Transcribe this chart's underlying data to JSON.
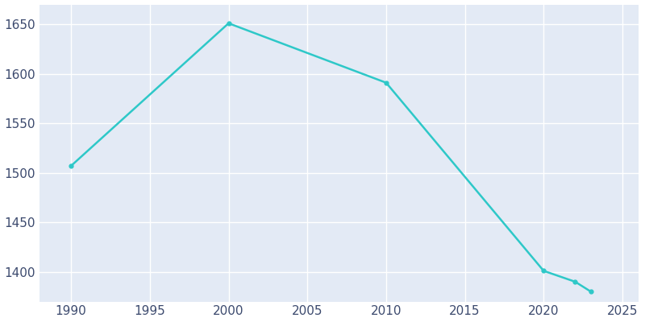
{
  "years": [
    1990,
    2000,
    2010,
    2020,
    2022,
    2023
  ],
  "population": [
    1507,
    1651,
    1591,
    1401,
    1390,
    1380
  ],
  "line_color": "#2ec8c8",
  "plot_bg_color": "#e3eaf5",
  "fig_bg_color": "#ffffff",
  "grid_color": "#ffffff",
  "tick_color": "#3c4a6e",
  "xlim": [
    1988,
    2026
  ],
  "ylim": [
    1370,
    1670
  ],
  "xticks": [
    1990,
    1995,
    2000,
    2005,
    2010,
    2015,
    2020,
    2025
  ],
  "yticks": [
    1400,
    1450,
    1500,
    1550,
    1600,
    1650
  ],
  "figsize": [
    8.0,
    4.0
  ],
  "dpi": 100,
  "line_width": 1.8,
  "marker": "o",
  "marker_size": 3.5
}
